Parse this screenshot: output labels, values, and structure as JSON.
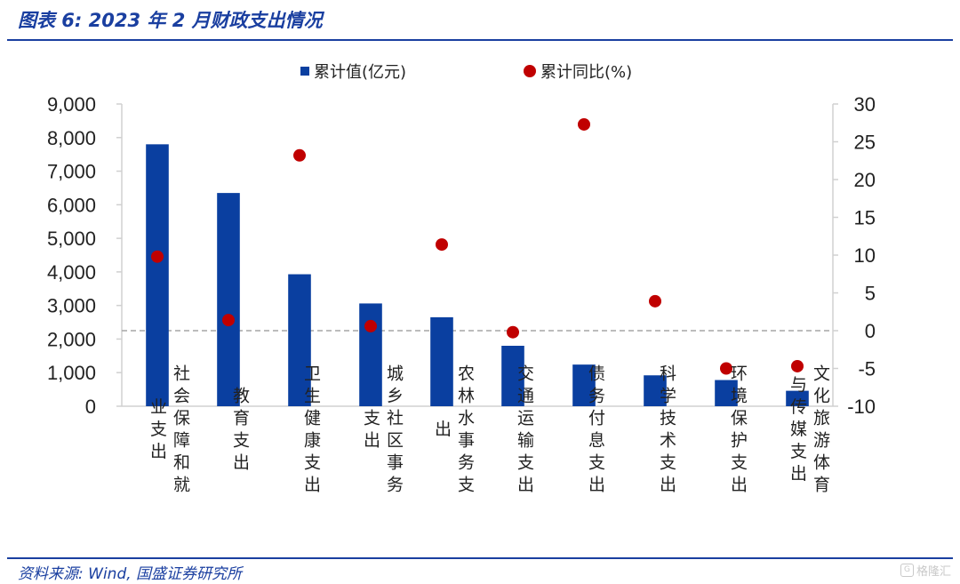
{
  "header": {
    "title": "图表 6: 2023 年 2 月财政支出情况"
  },
  "footer": {
    "source": "资料来源: Wind, 国盛证券研究所",
    "watermark": "格隆汇"
  },
  "colors": {
    "bar": "#0a3fa0",
    "dot": "#c00000",
    "accent": "#1a3fa0",
    "zero_line": "#a6a6a6"
  },
  "chart_data": {
    "type": "bar",
    "categories": [
      [
        "社会保障和就",
        "业支出"
      ],
      [
        "教育支出"
      ],
      [
        "卫生健康支出"
      ],
      [
        "城乡社区事务",
        "支出"
      ],
      [
        "农林水事务支",
        "出"
      ],
      [
        "交通运输支出"
      ],
      [
        "债务付息支出"
      ],
      [
        "科学技术支出"
      ],
      [
        "环境保护支出"
      ],
      [
        "文化旅游体育",
        "与传媒支出"
      ]
    ],
    "series": [
      {
        "name": "累计值(亿元)",
        "type": "bar",
        "axis": "left",
        "values": [
          7800,
          6350,
          3930,
          3060,
          2650,
          1800,
          1240,
          920,
          780,
          460
        ]
      },
      {
        "name": "累计同比(%)",
        "type": "scatter",
        "axis": "right",
        "values": [
          9.8,
          1.4,
          23.2,
          0.6,
          11.4,
          -0.2,
          27.3,
          3.9,
          -5.0,
          -4.7
        ]
      }
    ],
    "y_left": {
      "ylim": [
        0,
        9000
      ],
      "ticks": [
        "0",
        "1,000",
        "2,000",
        "3,000",
        "4,000",
        "5,000",
        "6,000",
        "7,000",
        "8,000",
        "9,000"
      ]
    },
    "y_right": {
      "ylim": [
        -10,
        30
      ],
      "ticks": [
        "-10",
        "-5",
        "0",
        "5",
        "10",
        "15",
        "20",
        "25",
        "30"
      ],
      "reference_line": 0
    },
    "legend": {
      "position": "top-center"
    }
  }
}
